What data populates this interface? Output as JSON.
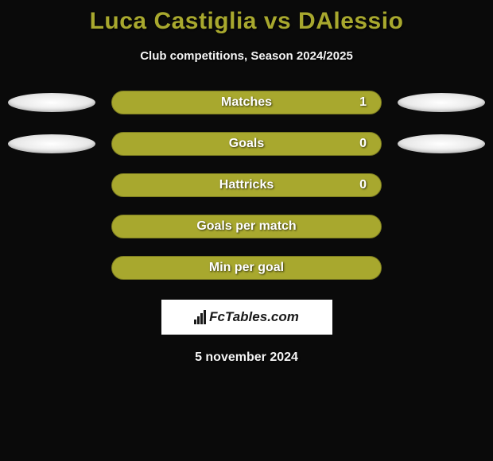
{
  "title": "Luca Castiglia vs DAlessio",
  "subtitle": "Club competitions, Season 2024/2025",
  "bar_color": "#a8a82e",
  "bar_border_color": "#7a7a20",
  "background_color": "#0a0a0a",
  "text_color": "#ffffff",
  "title_color": "#a8a82e",
  "subtitle_color": "#f5f5f5",
  "title_fontsize": 30,
  "subtitle_fontsize": 15,
  "bar_label_fontsize": 16,
  "rows": [
    {
      "label": "Matches",
      "value": "1",
      "show_left_ellipse": true,
      "show_right_ellipse": true
    },
    {
      "label": "Goals",
      "value": "0",
      "show_left_ellipse": true,
      "show_right_ellipse": true
    },
    {
      "label": "Hattricks",
      "value": "0",
      "show_left_ellipse": false,
      "show_right_ellipse": false
    },
    {
      "label": "Goals per match",
      "value": "",
      "show_left_ellipse": false,
      "show_right_ellipse": false
    },
    {
      "label": "Min per goal",
      "value": "",
      "show_left_ellipse": false,
      "show_right_ellipse": false
    }
  ],
  "logo_text": "FcTables.com",
  "footer_date": "5 november 2024"
}
